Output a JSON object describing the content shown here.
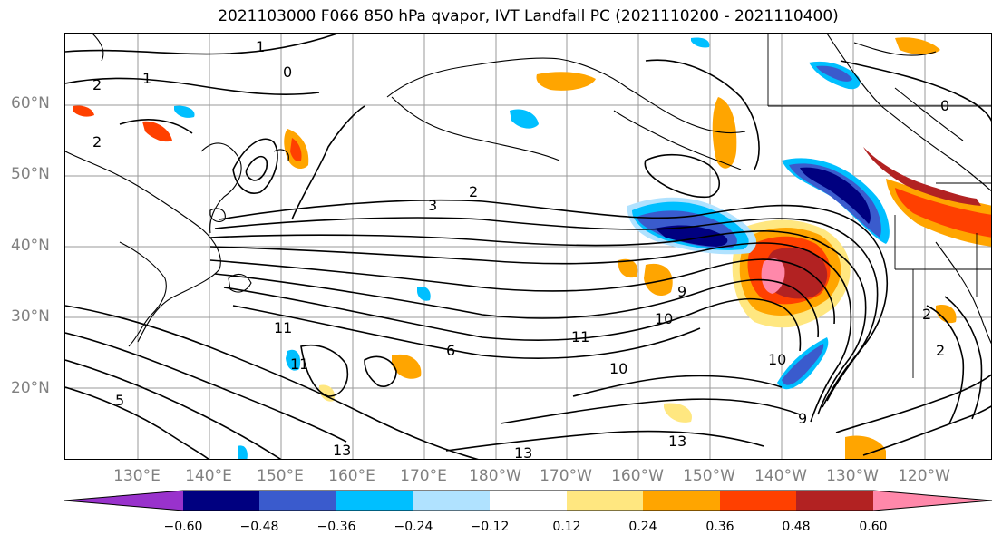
{
  "title": "2021103000 F066 850 hPa qvapor, IVT Landfall PC (2021110200 - 2021110400)",
  "latitude_labels": [
    "60°N",
    "50°N",
    "40°N",
    "30°N",
    "20°N"
  ],
  "longitude_labels": [
    "130°E",
    "140°E",
    "150°E",
    "160°E",
    "170°E",
    "180°W",
    "170°W",
    "160°W",
    "150°W",
    "140°W",
    "130°W",
    "120°W"
  ],
  "colorbar": {
    "colors": [
      "#9932CC",
      "#000080",
      "#3A5BCD",
      "#00BFFF",
      "#B0E2FF",
      "#FFFFFF",
      "#FFE780",
      "#FFA500",
      "#FF4000",
      "#B22222",
      "#FF88AA"
    ],
    "tick_labels": [
      "−0.60",
      "−0.48",
      "−0.36",
      "−0.24",
      "−0.12",
      "0.12",
      "0.24",
      "0.36",
      "0.48",
      "0.60"
    ]
  },
  "contour_labels": [
    "1",
    "2",
    "1",
    "0",
    "2",
    "3",
    "2",
    "11",
    "11",
    "11",
    "10",
    "10",
    "9",
    "10",
    "9",
    "6",
    "13",
    "13",
    "13",
    "5",
    "2",
    "2",
    "0"
  ]
}
